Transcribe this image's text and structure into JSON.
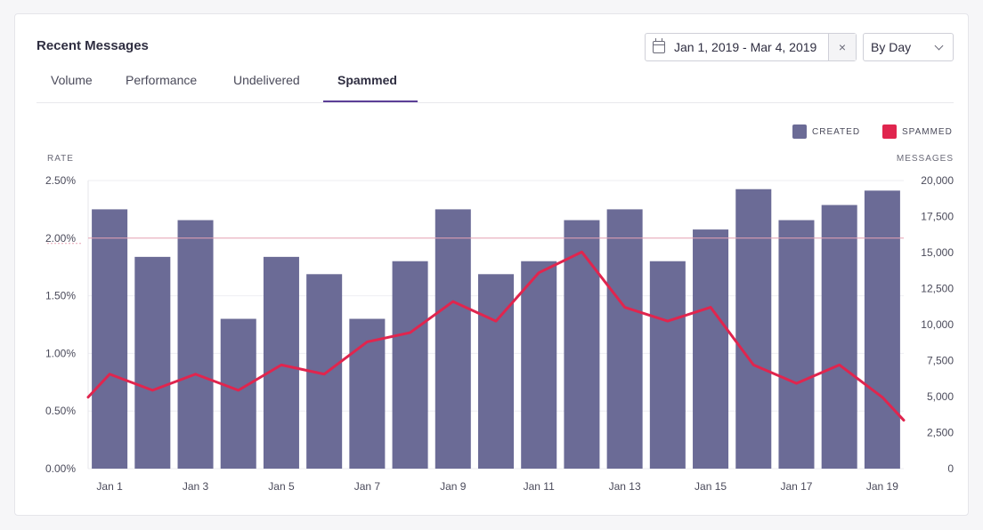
{
  "card": {
    "title": "Recent Messages"
  },
  "tabs": [
    {
      "label": "Volume"
    },
    {
      "label": "Performance"
    },
    {
      "label": "Undelivered"
    },
    {
      "label": "Spammed",
      "active": true
    }
  ],
  "date_range": {
    "value": "Jan 1, 2019 - Mar 4, 2019",
    "clear_label": "×"
  },
  "granularity": {
    "selected": "By Day"
  },
  "colors": {
    "created": "#6b6b96",
    "spammed": "#e0254e",
    "accent": "#5b3e96"
  },
  "legend": [
    {
      "label": "CREATED",
      "color": "#6b6b96"
    },
    {
      "label": "SPAMMED",
      "color": "#e0254e"
    }
  ],
  "chart_data": {
    "type": "bar",
    "left_axis_title": "RATE",
    "right_axis_title": "MESSAGES",
    "left_ticks": [
      "0.00%",
      "0.50%",
      "1.00%",
      "1.50%",
      "2.00%",
      "2.50%"
    ],
    "right_ticks": [
      "0",
      "2,500",
      "5,000",
      "7,500",
      "10,000",
      "12,500",
      "15,000",
      "17,500",
      "20,000"
    ],
    "left_ylim": [
      0,
      2.5
    ],
    "right_ylim": [
      0,
      20000
    ],
    "x_ticks": [
      "Jan 1",
      "Jan 3",
      "Jan 5",
      "Jan 7",
      "Jan 9",
      "Jan 11",
      "Jan 13",
      "Jan 15",
      "Jan 17",
      "Jan 19"
    ],
    "categories": [
      "Jan 1",
      "Jan 2",
      "Jan 3",
      "Jan 4",
      "Jan 5",
      "Jan 6",
      "Jan 7",
      "Jan 8",
      "Jan 9",
      "Jan 10",
      "Jan 11",
      "Jan 12",
      "Jan 13",
      "Jan 14",
      "Jan 15",
      "Jan 16",
      "Jan 17",
      "Jan 18",
      "Jan 19"
    ],
    "reference_line": {
      "axis": "left",
      "value": 2.0
    },
    "series": [
      {
        "name": "CREATED",
        "type": "bar",
        "axis": "right",
        "values": [
          18000,
          14700,
          17250,
          10400,
          14700,
          13500,
          10400,
          14400,
          18000,
          13500,
          14400,
          17250,
          18000,
          14400,
          16600,
          19400,
          17250,
          18300,
          19300
        ]
      },
      {
        "name": "SPAMMED",
        "type": "line",
        "axis": "left",
        "start": 0.62,
        "values": [
          0.82,
          0.68,
          0.82,
          0.68,
          0.9,
          0.82,
          1.1,
          1.18,
          1.45,
          1.28,
          1.7,
          1.88,
          1.4,
          1.28,
          1.4,
          0.9,
          0.74,
          0.9,
          0.62
        ],
        "end": 0.42
      }
    ]
  }
}
